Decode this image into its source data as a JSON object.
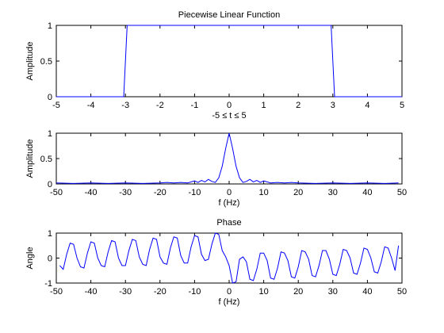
{
  "chart_data": [
    {
      "type": "line",
      "title": "Piecewise Linear Function",
      "xlabel": "-5 ≤ t ≤ 5",
      "ylabel": "Amplitude",
      "xlim": [
        -5,
        5
      ],
      "ylim": [
        0,
        1
      ],
      "xticks": [
        -5,
        -4,
        -3,
        -2,
        -1,
        0,
        1,
        2,
        3,
        4,
        5
      ],
      "yticks": [
        0,
        0.5,
        1
      ],
      "xtick_labels": [
        "-5",
        "-4",
        "-3",
        "-2",
        "-1",
        "0",
        "1",
        "2",
        "3",
        "4",
        "5"
      ],
      "ytick_labels": [
        "0",
        "0.5",
        "1"
      ],
      "series": [
        {
          "x": [
            -5,
            -3.05,
            -2.95,
            2.95,
            3.05,
            5
          ],
          "y": [
            0,
            0,
            1,
            1,
            0,
            0
          ]
        }
      ],
      "grid": false,
      "color": "#0000ff"
    },
    {
      "type": "line",
      "title": "",
      "xlabel": "f (Hz)",
      "ylabel": "Amplitude",
      "xlim": [
        -50,
        50
      ],
      "ylim": [
        0,
        1
      ],
      "xticks": [
        -50,
        -40,
        -30,
        -20,
        -10,
        0,
        10,
        20,
        30,
        40,
        50
      ],
      "yticks": [
        0,
        0.5,
        1
      ],
      "xtick_labels": [
        "-50",
        "-40",
        "-30",
        "-20",
        "-10",
        "0",
        "10",
        "20",
        "30",
        "40",
        "50"
      ],
      "ytick_labels": [
        "0",
        "0.5",
        "1"
      ],
      "series": [
        {
          "x": [
            -50,
            -45,
            -40,
            -35,
            -30,
            -25,
            -20,
            -18,
            -16,
            -14,
            -12,
            -10,
            -9,
            -8,
            -7,
            -6,
            -5,
            -4,
            -3,
            -2,
            -1,
            0,
            1,
            2,
            3,
            4,
            5,
            6,
            7,
            8,
            9,
            10,
            12,
            14,
            16,
            18,
            20,
            25,
            30,
            35,
            40,
            45,
            49
          ],
          "y": [
            0.02,
            0.01,
            0.02,
            0.01,
            0.02,
            0.01,
            0.02,
            0.03,
            0.02,
            0.03,
            0.02,
            0.06,
            0.03,
            0.07,
            0.04,
            0.09,
            0.05,
            0.03,
            0.12,
            0.35,
            0.7,
            1.0,
            0.7,
            0.35,
            0.12,
            0.03,
            0.05,
            0.09,
            0.04,
            0.07,
            0.03,
            0.06,
            0.02,
            0.03,
            0.02,
            0.03,
            0.02,
            0.01,
            0.02,
            0.01,
            0.02,
            0.01,
            0.02
          ]
        }
      ],
      "grid": false,
      "color": "#0000ff"
    },
    {
      "type": "line",
      "title": "Phase",
      "xlabel": "f (Hz)",
      "ylabel": "Angle",
      "xlim": [
        -50,
        50
      ],
      "ylim": [
        -1,
        1
      ],
      "xticks": [
        -50,
        -40,
        -30,
        -20,
        -10,
        0,
        10,
        20,
        30,
        40,
        50
      ],
      "yticks": [
        -1,
        0,
        1
      ],
      "xtick_labels": [
        "-50",
        "-40",
        "-30",
        "-20",
        "-10",
        "0",
        "10",
        "20",
        "30",
        "40",
        "50"
      ],
      "ytick_labels": [
        "-1",
        "0",
        "1"
      ],
      "series": [
        {
          "x": [
            -49,
            -48,
            -47,
            -46,
            -45,
            -44,
            -43,
            -42,
            -41,
            -40,
            -39,
            -38,
            -37,
            -36,
            -35,
            -34,
            -33,
            -32,
            -31,
            -30,
            -29,
            -28,
            -27,
            -26,
            -25,
            -24,
            -23,
            -22,
            -21,
            -20,
            -19,
            -18,
            -17,
            -16,
            -15,
            -14,
            -13,
            -12,
            -11,
            -10,
            -9,
            -8,
            -7,
            -6,
            -5,
            -4,
            -3,
            -2,
            -1,
            0,
            1,
            2,
            3,
            4,
            5,
            6,
            7,
            8,
            9,
            10,
            11,
            12,
            13,
            14,
            15,
            16,
            17,
            18,
            19,
            20,
            21,
            22,
            23,
            24,
            25,
            26,
            27,
            28,
            29,
            30,
            31,
            32,
            33,
            34,
            35,
            36,
            37,
            38,
            39,
            40,
            41,
            42,
            43,
            44,
            45,
            46,
            47,
            48,
            49
          ],
          "y": [
            -0.3,
            -0.45,
            0.15,
            0.6,
            0.55,
            0.0,
            -0.35,
            -0.4,
            0.2,
            0.65,
            0.6,
            0.0,
            -0.3,
            -0.35,
            0.25,
            0.7,
            0.65,
            0.0,
            -0.3,
            -0.3,
            0.3,
            0.75,
            0.7,
            0.05,
            -0.25,
            -0.3,
            0.35,
            0.8,
            0.75,
            0.05,
            -0.2,
            -0.25,
            0.4,
            0.85,
            0.8,
            0.1,
            -0.2,
            -0.2,
            0.45,
            0.9,
            0.85,
            0.15,
            -0.1,
            -0.05,
            0.55,
            1.0,
            0.95,
            0.3,
            0.05,
            -0.3,
            -1.0,
            -0.95,
            -0.05,
            0.05,
            -0.15,
            -0.85,
            -0.9,
            -0.45,
            0.2,
            0.2,
            -0.1,
            -0.8,
            -0.85,
            -0.4,
            0.25,
            0.2,
            -0.1,
            -0.75,
            -0.8,
            -0.35,
            0.3,
            0.25,
            -0.05,
            -0.7,
            -0.75,
            -0.3,
            0.3,
            0.3,
            -0.05,
            -0.65,
            -0.7,
            -0.25,
            0.35,
            0.3,
            0.0,
            -0.6,
            -0.65,
            -0.2,
            0.4,
            0.35,
            0.0,
            -0.55,
            -0.6,
            -0.15,
            0.45,
            0.4,
            0.0,
            -0.5,
            0.5
          ]
        }
      ],
      "grid": false,
      "color": "#0000ff"
    }
  ]
}
